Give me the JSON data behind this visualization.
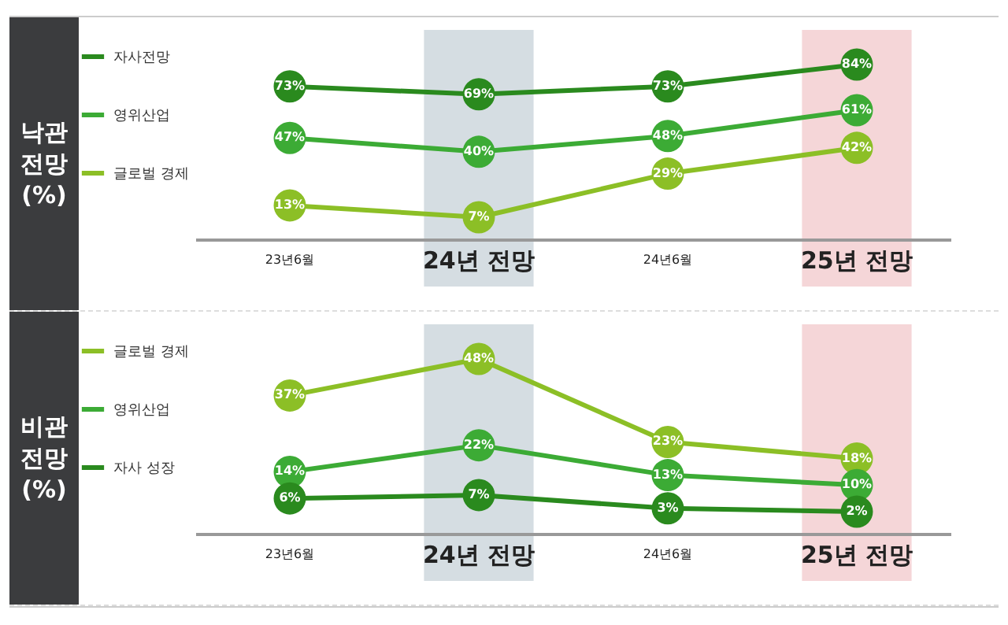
{
  "chart_data": [
    {
      "type": "line",
      "ylabel": "낙관 전망 (%)",
      "categories": [
        "23년6월",
        "24년 전망",
        "24년6월",
        "25년 전망"
      ],
      "series": [
        {
          "name": "자사전망",
          "color": "#2a8a1e",
          "values": [
            73,
            69,
            73,
            84
          ],
          "value_labels": [
            "73%",
            "69%",
            "73%",
            "84%"
          ]
        },
        {
          "name": "영위산업",
          "color": "#3cab35",
          "values": [
            47,
            40,
            48,
            61
          ],
          "value_labels": [
            "47%",
            "40%",
            "48%",
            "61%"
          ]
        },
        {
          "name": "글로벌 경제",
          "color": "#8cbf26",
          "values": [
            13,
            7,
            29,
            42
          ],
          "value_labels": [
            "13%",
            "7%",
            "29%",
            "42%"
          ]
        }
      ],
      "bands": [
        {
          "axis": "x",
          "from": "24년 전망",
          "to": "24년 전망",
          "color": "#d5dde2"
        },
        {
          "axis": "x",
          "from": "25년 전망",
          "to": "25년 전망",
          "color": "#f5d6d8"
        }
      ],
      "legend": "left",
      "marker": "circle"
    },
    {
      "type": "line",
      "ylabel": "비관 전망 (%)",
      "categories": [
        "23년6월",
        "24년 전망",
        "24년6월",
        "25년 전망"
      ],
      "series": [
        {
          "name": "글로벌 경제",
          "color": "#8cbf26",
          "values": [
            37,
            48,
            23,
            18
          ],
          "value_labels": [
            "37%",
            "48%",
            "23%",
            "18%"
          ]
        },
        {
          "name": "영위산업",
          "color": "#3cab35",
          "values": [
            14,
            22,
            13,
            10
          ],
          "value_labels": [
            "14%",
            "22%",
            "13%",
            "10%"
          ]
        },
        {
          "name": "자사 성장",
          "color": "#2a8a1e",
          "values": [
            6,
            7,
            3,
            2
          ],
          "value_labels": [
            "6%",
            "7%",
            "3%",
            "2%"
          ]
        }
      ],
      "bands": [
        {
          "axis": "x",
          "from": "24년 전망",
          "to": "24년 전망",
          "color": "#d5dde2"
        },
        {
          "axis": "x",
          "from": "25년 전망",
          "to": "25년 전망",
          "color": "#f5d6d8"
        }
      ],
      "legend": "left",
      "marker": "circle"
    }
  ]
}
